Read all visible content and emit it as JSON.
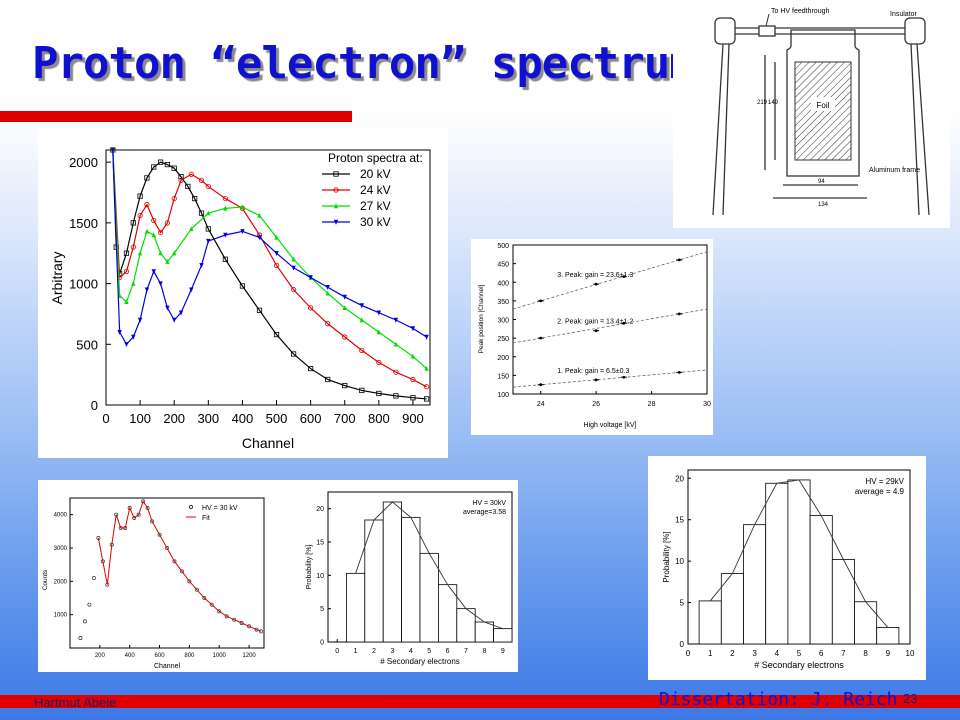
{
  "slide": {
    "title": "Proton “electron” spectrum",
    "footer_left": "Hartmut Abele",
    "footer_center": "Dissertation: J. Reich",
    "page_number": "23"
  },
  "diagram": {
    "labels": [
      "To HV feedthrough",
      "Insulator",
      "Foil",
      "Aluminum frame",
      "219",
      "149",
      "94",
      "134"
    ]
  },
  "chart_data": [
    {
      "type": "line",
      "xlabel": "Channel",
      "ylabel": "Arbitrary",
      "xlim": [
        0,
        950
      ],
      "ylim": [
        0,
        2100
      ],
      "xticks": [
        0,
        100,
        200,
        300,
        400,
        500,
        600,
        700,
        800,
        900
      ],
      "yticks": [
        0,
        500,
        1000,
        1500,
        2000
      ],
      "legend_title": "Proton spectra at:",
      "legend_position": "top-right",
      "series": [
        {
          "name": "20 kV",
          "color": "#000000",
          "marker": "square",
          "x": [
            20,
            30,
            40,
            60,
            80,
            100,
            120,
            140,
            160,
            180,
            200,
            220,
            240,
            260,
            280,
            300,
            350,
            400,
            450,
            500,
            550,
            600,
            650,
            700,
            750,
            800,
            850,
            900,
            940
          ],
          "y": [
            2100,
            1300,
            1080,
            1250,
            1500,
            1720,
            1870,
            1960,
            2000,
            1980,
            1950,
            1880,
            1800,
            1700,
            1580,
            1450,
            1200,
            980,
            780,
            580,
            420,
            300,
            210,
            160,
            120,
            95,
            75,
            60,
            50
          ]
        },
        {
          "name": "24 kV",
          "color": "#e00000",
          "marker": "circle",
          "x": [
            20,
            40,
            60,
            80,
            100,
            120,
            140,
            160,
            180,
            200,
            220,
            250,
            280,
            300,
            350,
            400,
            450,
            500,
            550,
            600,
            650,
            700,
            750,
            800,
            850,
            900,
            940
          ],
          "y": [
            2100,
            1050,
            1100,
            1300,
            1560,
            1650,
            1520,
            1420,
            1500,
            1700,
            1850,
            1900,
            1850,
            1800,
            1700,
            1620,
            1400,
            1150,
            950,
            800,
            670,
            560,
            450,
            350,
            270,
            210,
            150
          ]
        },
        {
          "name": "27 kV",
          "color": "#00dd00",
          "marker": "triangle-up",
          "x": [
            20,
            40,
            60,
            80,
            100,
            120,
            140,
            160,
            180,
            200,
            250,
            300,
            350,
            400,
            450,
            500,
            550,
            600,
            650,
            700,
            750,
            800,
            850,
            900,
            940
          ],
          "y": [
            2100,
            900,
            850,
            1000,
            1250,
            1430,
            1400,
            1250,
            1180,
            1250,
            1450,
            1580,
            1620,
            1630,
            1560,
            1380,
            1200,
            1050,
            920,
            800,
            700,
            600,
            500,
            400,
            300
          ]
        },
        {
          "name": "30 kV",
          "color": "#0000e0",
          "marker": "triangle-down",
          "x": [
            20,
            40,
            60,
            80,
            100,
            120,
            140,
            160,
            180,
            200,
            220,
            250,
            280,
            300,
            350,
            400,
            450,
            500,
            550,
            600,
            650,
            700,
            750,
            800,
            850,
            900,
            940
          ],
          "y": [
            2100,
            600,
            500,
            560,
            700,
            950,
            1100,
            1000,
            800,
            700,
            760,
            950,
            1150,
            1350,
            1400,
            1430,
            1380,
            1250,
            1130,
            1050,
            970,
            890,
            820,
            760,
            700,
            630,
            560
          ]
        }
      ]
    },
    {
      "type": "scatter",
      "xlabel": "High voltage [kV]",
      "ylabel": "Peak position [Channel]",
      "xlim": [
        23,
        30
      ],
      "ylim": [
        100,
        500
      ],
      "xticks": [
        24,
        26,
        28,
        30
      ],
      "yticks": [
        100,
        150,
        200,
        250,
        300,
        350,
        400,
        450,
        500
      ],
      "series": [
        {
          "name": "3. Peak:  gain = 23.6±1.3",
          "x": [
            24,
            26,
            27,
            29
          ],
          "y": [
            350,
            395,
            415,
            460
          ]
        },
        {
          "name": "2. Peak:  gain = 13.4±1.2",
          "x": [
            24,
            26,
            27,
            29
          ],
          "y": [
            250,
            270,
            290,
            315
          ]
        },
        {
          "name": "1. Peak:  gain = 6.5±0.3",
          "x": [
            24,
            26,
            27,
            29
          ],
          "y": [
            125,
            138,
            145,
            158
          ]
        }
      ]
    },
    {
      "type": "scatter",
      "xlabel": "Channel",
      "ylabel": "Counts",
      "xlim": [
        0,
        1300
      ],
      "ylim": [
        0,
        4500
      ],
      "xticks": [
        200,
        400,
        600,
        800,
        1000,
        1200
      ],
      "yticks": [
        1000,
        2000,
        3000,
        4000
      ],
      "legend": [
        "HV = 30 kV",
        "Fit"
      ],
      "series": [
        {
          "name": "HV = 30 kV",
          "x": [
            70,
            100,
            130,
            160,
            190,
            220,
            250,
            280,
            310,
            340,
            370,
            400,
            430,
            460,
            490,
            520,
            550,
            600,
            650,
            700,
            750,
            800,
            850,
            900,
            950,
            1000,
            1050,
            1100,
            1150,
            1200,
            1250,
            1280
          ],
          "y": [
            300,
            800,
            1300,
            2100,
            3300,
            2600,
            1900,
            3100,
            4000,
            3600,
            3600,
            4200,
            3900,
            4000,
            4400,
            4200,
            3800,
            3400,
            3000,
            2600,
            2300,
            2000,
            1750,
            1500,
            1300,
            1100,
            950,
            850,
            750,
            650,
            550,
            500
          ]
        },
        {
          "name": "Fit",
          "x": [
            190,
            220,
            250,
            280,
            310,
            340,
            370,
            400,
            430,
            460,
            490,
            520,
            550,
            600,
            650,
            700,
            750,
            800,
            850,
            900,
            950,
            1000,
            1050,
            1100,
            1150,
            1200,
            1250,
            1280
          ],
          "y": [
            3300,
            2600,
            1900,
            3100,
            4000,
            3600,
            3600,
            4200,
            3900,
            4000,
            4400,
            4200,
            3800,
            3400,
            3000,
            2600,
            2300,
            2000,
            1750,
            1500,
            1300,
            1100,
            950,
            850,
            750,
            650,
            550,
            500
          ]
        }
      ]
    },
    {
      "type": "bar",
      "xlabel": "# Secondary electrons",
      "ylabel": "Probability [%]",
      "annotation": [
        "HV = 30kV",
        "average=3.58"
      ],
      "xlim": [
        -0.5,
        9.5
      ],
      "ylim": [
        0,
        22.5
      ],
      "xticks": [
        0,
        1,
        2,
        3,
        4,
        5,
        6,
        7,
        8,
        9
      ],
      "yticks": [
        0,
        5,
        10,
        15,
        20
      ],
      "categories": [
        1,
        2,
        3,
        4,
        5,
        6,
        7,
        8,
        9
      ],
      "values": [
        10.3,
        18.3,
        21.0,
        18.7,
        13.3,
        8.6,
        5.0,
        3.0,
        2.0
      ]
    },
    {
      "type": "bar",
      "xlabel": "# Secondary electrons",
      "ylabel": "Probability [%]",
      "annotation": [
        "HV = 29kV",
        "average = 4.9"
      ],
      "xlim": [
        0,
        10
      ],
      "ylim": [
        0,
        21
      ],
      "xticks": [
        0,
        1,
        2,
        3,
        4,
        5,
        6,
        7,
        8,
        9,
        10
      ],
      "yticks": [
        0,
        5,
        10,
        15,
        20
      ],
      "categories": [
        1,
        2,
        3,
        4,
        5,
        6,
        7,
        8,
        9
      ],
      "values": [
        5.2,
        8.5,
        14.4,
        19.4,
        19.8,
        15.5,
        10.2,
        5.1,
        2.0
      ]
    }
  ]
}
